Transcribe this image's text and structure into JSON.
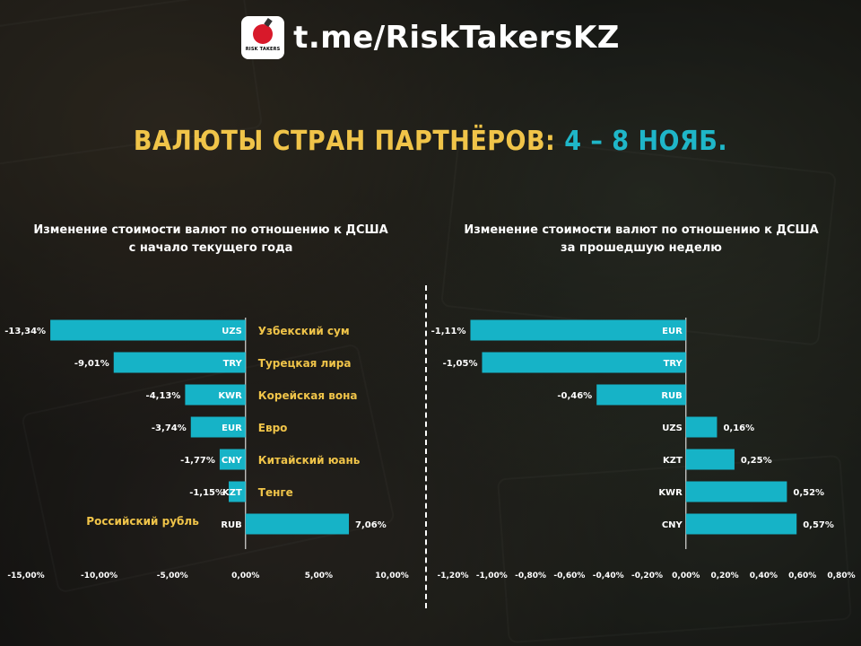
{
  "header": {
    "logo_text": "RISK TAKERS",
    "channel": "t.me/RiskTakersKZ"
  },
  "title": {
    "part1": "ВАЛЮТЫ СТРАН ПАРТНЁРОВ:",
    "part2": "4 – 8 НОЯБ."
  },
  "colors": {
    "bar": "#16b3c7",
    "title_gold": "#f0c449",
    "title_teal": "#1fb6c8",
    "currency_name": "#f0c449",
    "text": "#ffffff"
  },
  "chart_data": [
    {
      "type": "bar",
      "orientation": "horizontal",
      "title": "Изменение стоимости валют по отношению к ДСША",
      "subtitle": "с начало текущего года",
      "categories": [
        "UZS",
        "TRY",
        "KWR",
        "EUR",
        "CNY",
        "KZT",
        "RUB"
      ],
      "currency_names": [
        "Узбекский сум",
        "Турецкая лира",
        "Корейская вона",
        "Евро",
        "Китайский юань",
        "Тенге",
        "Российский рубль"
      ],
      "values": [
        -13.34,
        -9.01,
        -4.13,
        -3.74,
        -1.77,
        -1.15,
        7.06
      ],
      "value_labels": [
        "-13,34%",
        "-9,01%",
        "-4,13%",
        "-3,74%",
        "-1,77%",
        "-1,15%",
        "7,06%"
      ],
      "xlim": [
        -15,
        10
      ],
      "ticks": [
        -15,
        -10,
        -5,
        0,
        5,
        10
      ],
      "tick_labels": [
        "-15,00%",
        "-10,00%",
        "-5,00%",
        "0,00%",
        "5,00%",
        "10,00%"
      ]
    },
    {
      "type": "bar",
      "orientation": "horizontal",
      "title": "Изменение стоимости валют по отношению к ДСША",
      "subtitle": "за прошедшую неделю",
      "categories": [
        "EUR",
        "TRY",
        "RUB",
        "UZS",
        "KZT",
        "KWR",
        "CNY"
      ],
      "values": [
        -1.11,
        -1.05,
        -0.46,
        0.16,
        0.25,
        0.52,
        0.57
      ],
      "value_labels": [
        "-1,11%",
        "-1,05%",
        "-0,46%",
        "0,16%",
        "0,25%",
        "0,52%",
        "0,57%"
      ],
      "xlim": [
        -1.2,
        0.8
      ],
      "ticks": [
        -1.2,
        -1.0,
        -0.8,
        -0.6,
        -0.4,
        -0.2,
        0.0,
        0.2,
        0.4,
        0.6,
        0.8
      ],
      "tick_labels": [
        "-1,20%",
        "-1,00%",
        "-0,80%",
        "-0,60%",
        "-0,40%",
        "-0,20%",
        "0,00%",
        "0,20%",
        "0,40%",
        "0,60%",
        "0,80%"
      ]
    }
  ]
}
